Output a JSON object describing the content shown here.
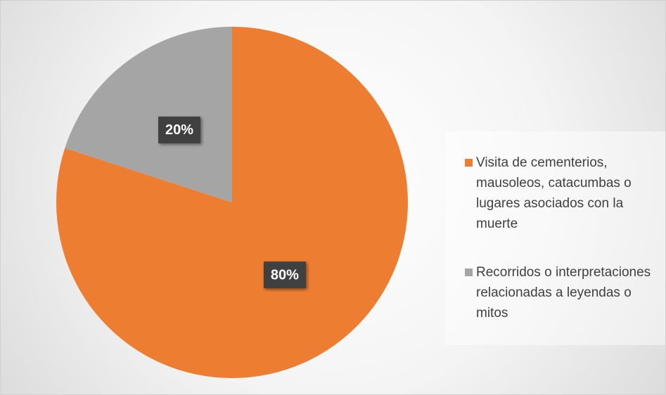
{
  "chart_data": {
    "type": "pie",
    "categories": [
      "Visita de cementerios, mausoleos, catacumbas o lugares asociados con la muerte",
      "Recorridos o interpretaciones relacionadas a leyendas o mitos"
    ],
    "values": [
      80,
      20
    ],
    "value_labels": [
      "80%",
      "20%"
    ],
    "colors": [
      "#ed7d31",
      "#a5a5a5"
    ],
    "legend": "right"
  }
}
